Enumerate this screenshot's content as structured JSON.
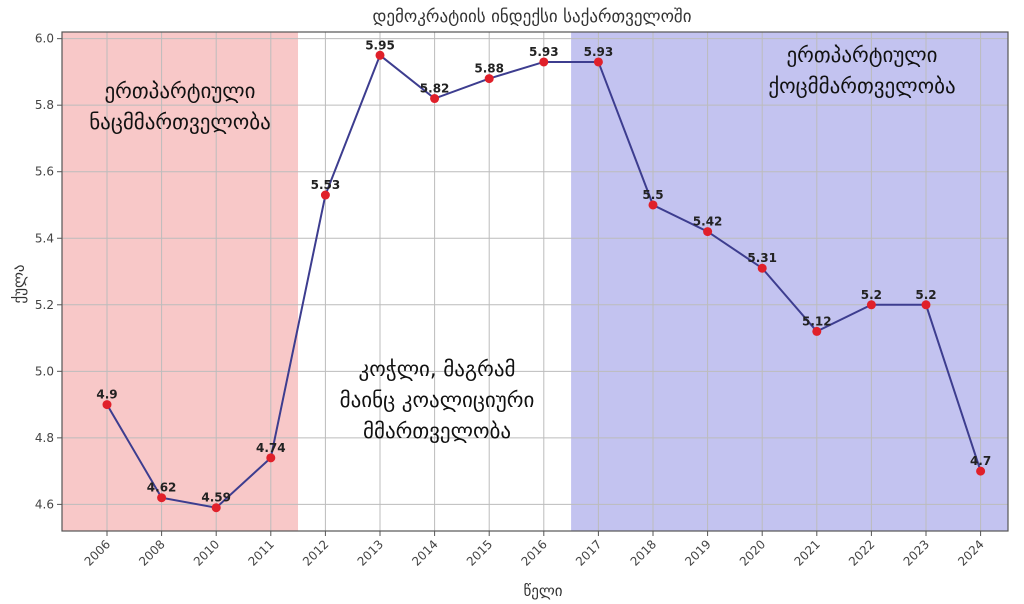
{
  "chart_data": {
    "type": "line",
    "title": "დემოკრატიის ინდექსი საქართველოში",
    "xlabel": "წელი",
    "ylabel": "ქულა",
    "categories": [
      "2006",
      "2008",
      "2010",
      "2011",
      "2012",
      "2013",
      "2014",
      "2015",
      "2016",
      "2017",
      "2018",
      "2019",
      "2020",
      "2021",
      "2022",
      "2023",
      "2024"
    ],
    "series": [
      {
        "values": [
          4.9,
          4.62,
          4.59,
          4.74,
          5.53,
          5.95,
          5.82,
          5.88,
          5.93,
          5.93,
          5.5,
          5.42,
          5.31,
          5.12,
          5.2,
          5.2,
          4.7
        ]
      }
    ],
    "data_labels": [
      "4.9",
      "4.62",
      "4.59",
      "4.74",
      "5.53",
      "5.95",
      "5.82",
      "5.88",
      "5.93",
      "5.93",
      "5.5",
      "5.42",
      "5.31",
      "5.12",
      "5.2",
      "5.2",
      "4.7"
    ],
    "ylim": [
      4.52,
      6.02
    ],
    "yticks": [
      "4.6",
      "4.8",
      "5.0",
      "5.2",
      "5.4",
      "5.6",
      "5.8",
      "6.0"
    ],
    "grid": true,
    "regions": [
      {
        "from": "2006",
        "to": "2011",
        "color": "#f8c8c8",
        "label": [
          "ერთპარტიული",
          "ნაცმმართველობა"
        ]
      },
      {
        "from": "2012",
        "to": "2016",
        "color": "#ffffff",
        "label": [
          "კოჭლი, მაგრამ",
          "მაინც კოალიციური",
          "მმართველობა"
        ]
      },
      {
        "from": "2017",
        "to": "2024",
        "color": "#c3c3f0",
        "label": [
          "ერთპარტიული",
          "ქოცმმართველობა"
        ]
      }
    ],
    "line_color": "#3d3d8f",
    "marker_color": "#e0202a"
  }
}
